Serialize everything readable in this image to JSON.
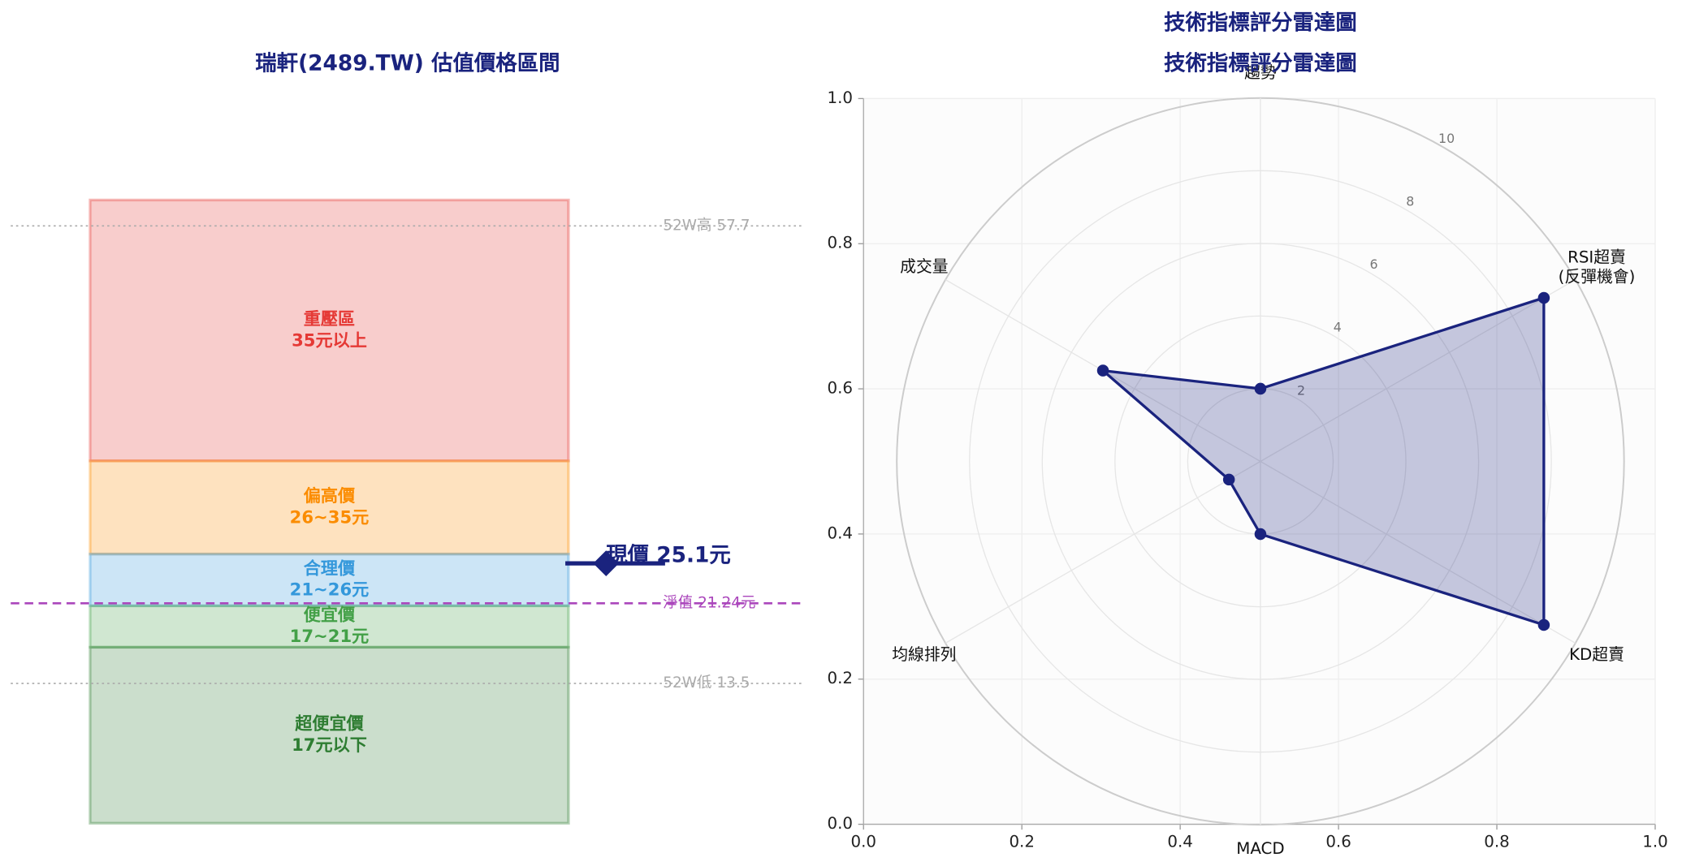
{
  "chart_data": [
    {
      "type": "band",
      "title": "瑞軒(2489.TW) 估值價格區間",
      "ylim": [
        0,
        70
      ],
      "zones": [
        {
          "name": "重壓區",
          "label": "35元以上",
          "low": 35,
          "high": 60.2,
          "color": "#e53935"
        },
        {
          "name": "偏高價",
          "label": "26~35元",
          "low": 26,
          "high": 35,
          "color": "#fb8c00"
        },
        {
          "name": "合理價",
          "label": "21~26元",
          "low": 21,
          "high": 26,
          "color": "#3498db"
        },
        {
          "name": "便宜價",
          "label": "17~21元",
          "low": 17,
          "high": 21,
          "color": "#43a047"
        },
        {
          "name": "超便宜價",
          "label": "17元以下",
          "low": 0,
          "high": 17,
          "color": "#2e7d32"
        }
      ],
      "reference_lines": [
        {
          "label": "52W高 57.7",
          "value": 57.7,
          "color": "#aaaaaa",
          "style": "dotted"
        },
        {
          "label": "淨值 21.24元",
          "value": 21.24,
          "color": "#ab47bc",
          "style": "dashed"
        },
        {
          "label": "52W低 13.5",
          "value": 13.5,
          "color": "#aaaaaa",
          "style": "dotted"
        }
      ],
      "current": {
        "label": "現價 25.1元",
        "value": 25.1,
        "color": "#1a237e"
      }
    },
    {
      "type": "radar",
      "title": "技術指標評分雷達圖",
      "subtitle": "技術指標評分雷達圖",
      "categories": [
        "趨勢",
        "RSI超賣\n(反彈機會)",
        "KD超賣",
        "MACD",
        "均線排列",
        "成交量"
      ],
      "values": [
        2,
        9,
        9,
        2,
        1,
        5
      ],
      "color": "#1a237e",
      "rlim": [
        0,
        10
      ],
      "rticks": [
        2,
        4,
        6,
        8,
        10
      ],
      "xlim": [
        0,
        1
      ],
      "ylim": [
        0,
        1
      ],
      "xticks": [
        {
          "value": 0,
          "label": "0.0"
        },
        {
          "value": 0.2,
          "label": "0.2"
        },
        {
          "value": 0.4,
          "label": "0.4"
        },
        {
          "value": 0.6,
          "label": "0.6"
        },
        {
          "value": 0.8,
          "label": "0.8"
        },
        {
          "value": 1,
          "label": "1.0"
        }
      ],
      "yticks": [
        {
          "value": 0,
          "label": "0.0"
        },
        {
          "value": 0.2,
          "label": "0.2"
        },
        {
          "value": 0.4,
          "label": "0.4"
        },
        {
          "value": 0.6,
          "label": "0.6"
        },
        {
          "value": 0.8,
          "label": "0.8"
        },
        {
          "value": 1,
          "label": "1.0"
        }
      ]
    }
  ]
}
